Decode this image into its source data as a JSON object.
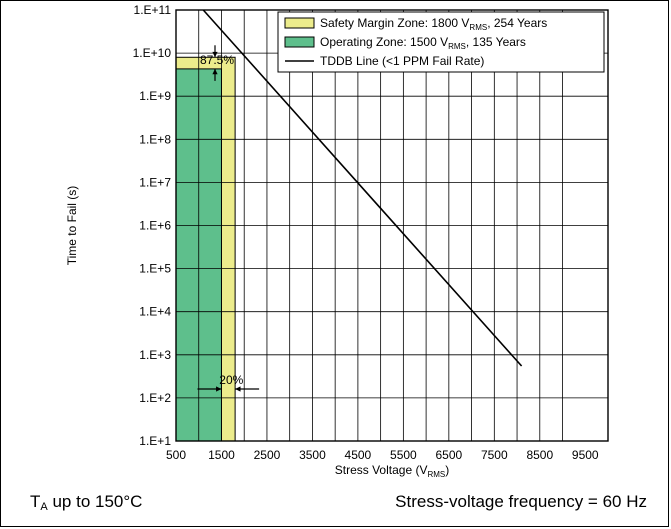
{
  "chart_data": {
    "type": "area",
    "xlabel": "Stress Voltage (V",
    "xlabel_sub": "RMS",
    "xlabel_tail": ")",
    "ylabel": "Time to Fail (s)",
    "xlim": [
      500,
      10000
    ],
    "ylim_exponents": [
      1,
      11
    ],
    "y_scale": "log",
    "grid": true,
    "x_ticks": [
      500,
      1500,
      2500,
      3500,
      4500,
      5500,
      6500,
      7500,
      8500,
      9500
    ],
    "x_tick_labels": [
      "500",
      "1500",
      "2500",
      "3500",
      "4500",
      "5500",
      "6500",
      "7500",
      "8500",
      "9500"
    ],
    "y_ticks": [
      1,
      2,
      3,
      4,
      5,
      6,
      7,
      8,
      9,
      10,
      11
    ],
    "y_tick_labels": [
      "1.E+1",
      "1.E+2",
      "1.E+3",
      "1.E+4",
      "1.E+5",
      "1.E+6",
      "1.E+7",
      "1.E+8",
      "1.E+9",
      "1.E+10",
      "1.E+11"
    ],
    "legend_position": "top-right",
    "series": [
      {
        "name": "Safety Margin Zone: 1800 V",
        "name_sub": "RMS",
        "name_tail": ", 254 Years",
        "type": "area",
        "color": "#ecec8c",
        "x_range": [
          500,
          1800
        ],
        "y_top": 8000000000
      },
      {
        "name": "Operating Zone: 1500 V",
        "name_sub": "RMS",
        "name_tail": ", 135 Years",
        "type": "area",
        "color": "#5ebf8c",
        "x_range": [
          500,
          1500
        ],
        "y_top": 4300000000
      },
      {
        "name": "TDDB Line (<1 PPM Fail Rate)",
        "type": "line",
        "color": "#000000",
        "x": [
          1100,
          8100
        ],
        "y": [
          100000000000,
          550
        ]
      }
    ],
    "annotations": [
      {
        "text": "87.5%"
      },
      {
        "text": "20%"
      }
    ]
  },
  "footer": {
    "left_main": "T",
    "left_sub": "A",
    "left_tail": " up to 150°C",
    "right": "Stress-voltage frequency = 60 Hz"
  }
}
